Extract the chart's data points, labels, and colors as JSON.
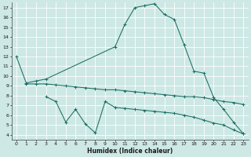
{
  "xlabel": "Humidex (Indice chaleur)",
  "xlim": [
    -0.5,
    23.5
  ],
  "ylim": [
    3.5,
    17.5
  ],
  "yticks": [
    4,
    5,
    6,
    7,
    8,
    9,
    10,
    11,
    12,
    13,
    14,
    15,
    16,
    17
  ],
  "xticks": [
    0,
    1,
    2,
    3,
    4,
    5,
    6,
    7,
    8,
    9,
    10,
    11,
    12,
    13,
    14,
    15,
    16,
    17,
    18,
    19,
    20,
    21,
    22,
    23
  ],
  "bg_color": "#cde8e5",
  "line_color": "#1a6e62",
  "grid_color": "#ffffff",
  "line1_x": [
    0,
    1,
    2,
    3,
    10,
    11,
    12,
    13,
    14,
    15,
    16,
    17,
    18,
    19,
    20,
    21,
    22,
    23
  ],
  "line1_y": [
    12.0,
    9.3,
    9.5,
    9.7,
    13.0,
    15.3,
    17.0,
    17.2,
    17.4,
    16.3,
    15.8,
    13.2,
    10.5,
    10.3,
    7.8,
    6.6,
    5.3,
    4.1
  ],
  "line2_x": [
    1,
    2,
    3,
    4,
    5,
    6,
    7,
    8,
    9,
    10,
    11,
    12,
    13,
    14,
    15,
    16,
    17,
    18,
    19,
    20,
    21,
    22,
    23
  ],
  "line2_y": [
    9.2,
    9.2,
    9.2,
    9.1,
    9.0,
    8.9,
    8.8,
    8.7,
    8.6,
    8.6,
    8.5,
    8.4,
    8.3,
    8.2,
    8.1,
    8.0,
    7.9,
    7.9,
    7.8,
    7.6,
    7.4,
    7.3,
    7.1
  ],
  "line3_x": [
    3,
    4,
    5,
    6,
    7,
    8,
    9,
    10,
    11,
    12,
    13,
    14,
    15,
    16,
    17,
    18,
    19,
    20,
    21,
    22,
    23
  ],
  "line3_y": [
    7.9,
    7.4,
    5.3,
    6.6,
    5.1,
    4.2,
    7.4,
    6.8,
    6.7,
    6.6,
    6.5,
    6.4,
    6.3,
    6.2,
    6.0,
    5.8,
    5.5,
    5.2,
    5.0,
    4.5,
    4.1
  ]
}
